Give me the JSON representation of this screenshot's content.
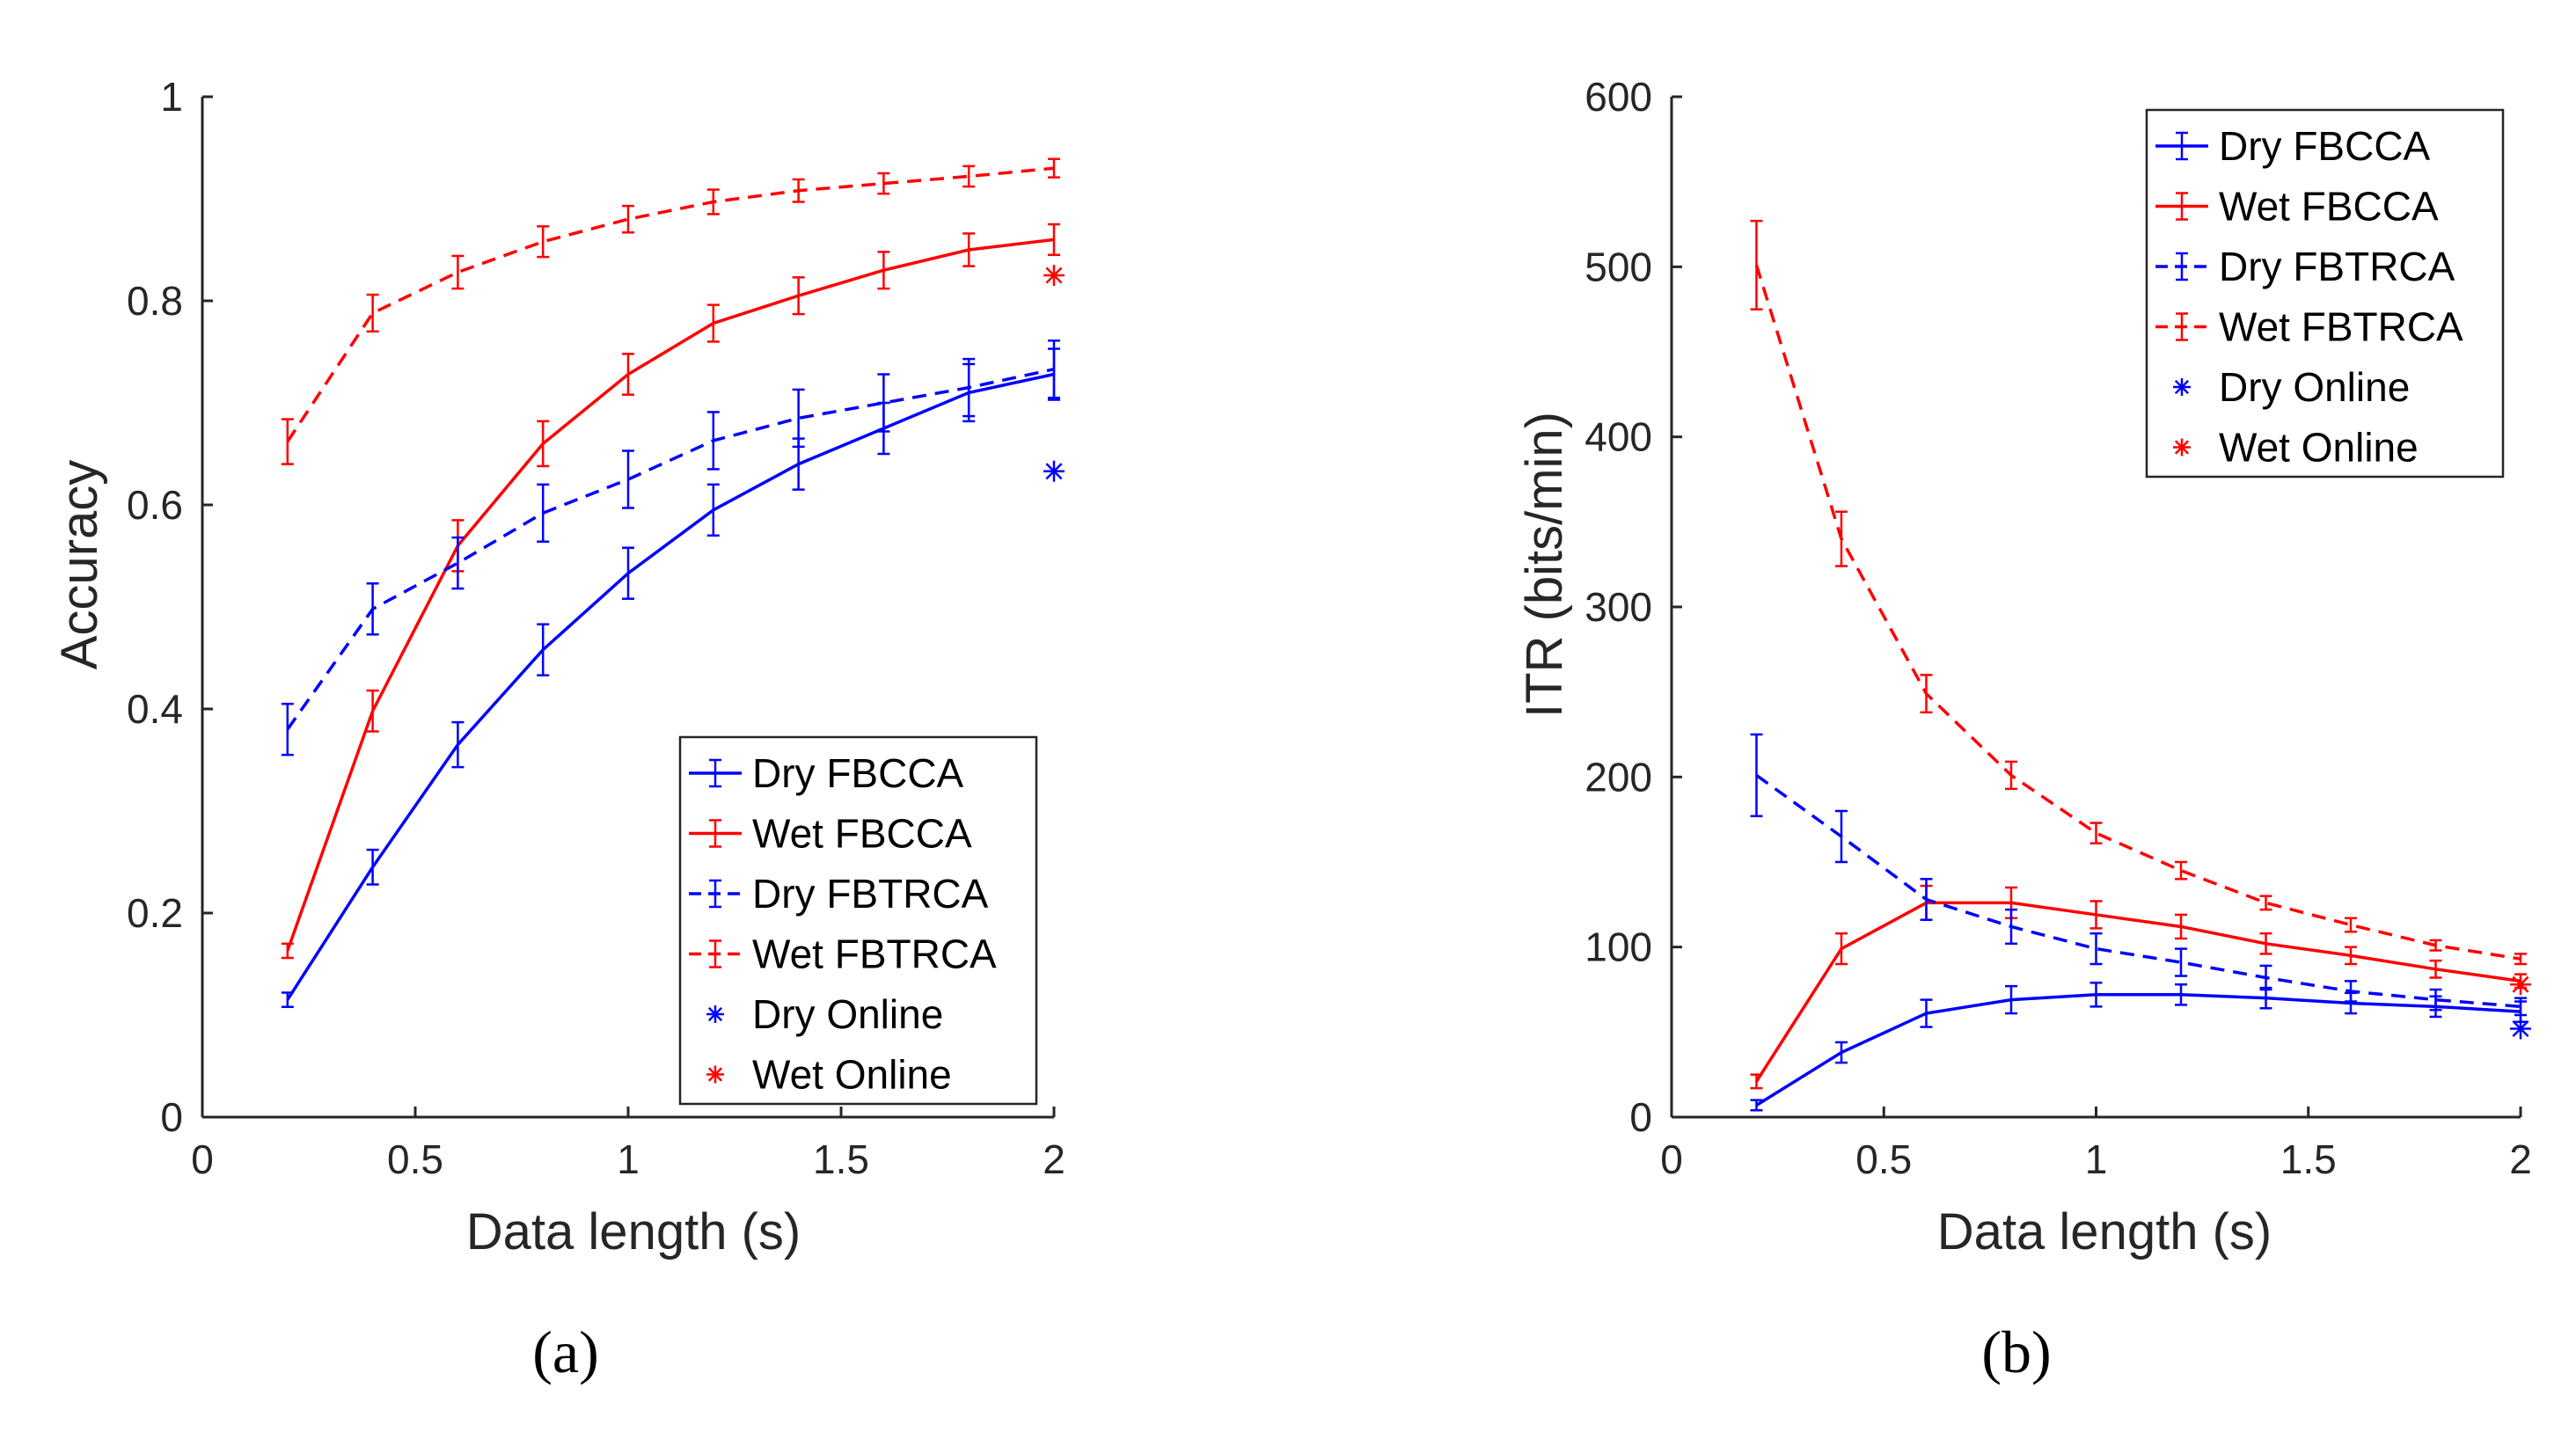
{
  "colors": {
    "dry": "#0000ff",
    "wet": "#ff0000",
    "axis": "#262626"
  },
  "chart_data": [
    {
      "type": "line",
      "panel_label": "(a)",
      "xlabel": "Data length (s)",
      "ylabel": "Accuracy",
      "xlim": [
        0,
        2
      ],
      "ylim": [
        0,
        1
      ],
      "xticks": [
        "0",
        "0.5",
        "1",
        "1.5",
        "2"
      ],
      "yticks": [
        "0",
        "0.2",
        "0.4",
        "0.6",
        "0.8",
        "1"
      ],
      "xtick_values": [
        0,
        0.5,
        1,
        1.5,
        2
      ],
      "ytick_values": [
        0,
        0.2,
        0.4,
        0.6,
        0.8,
        1
      ],
      "legend_position": "bottom-right",
      "grid": false,
      "x": [
        0.2,
        0.4,
        0.6,
        0.8,
        1.0,
        1.2,
        1.4,
        1.6,
        1.8,
        2.0
      ],
      "series": [
        {
          "name": "Dry FBCCA",
          "color": "#0000ff",
          "style": "solid",
          "values": [
            0.115,
            0.245,
            0.365,
            0.458,
            0.533,
            0.595,
            0.64,
            0.675,
            0.71,
            0.728
          ],
          "error": [
            0.007,
            0.017,
            0.022,
            0.025,
            0.025,
            0.025,
            0.025,
            0.025,
            0.028,
            0.025
          ]
        },
        {
          "name": "Wet FBCCA",
          "color": "#ff0000",
          "style": "solid",
          "values": [
            0.163,
            0.398,
            0.56,
            0.66,
            0.728,
            0.778,
            0.805,
            0.83,
            0.85,
            0.86
          ],
          "error": [
            0.007,
            0.02,
            0.025,
            0.022,
            0.02,
            0.018,
            0.018,
            0.018,
            0.016,
            0.015
          ]
        },
        {
          "name": "Dry FBTRCA",
          "color": "#0000ff",
          "style": "dashed",
          "values": [
            0.38,
            0.498,
            0.543,
            0.592,
            0.625,
            0.663,
            0.685,
            0.7,
            0.715,
            0.733
          ],
          "error": [
            0.025,
            0.025,
            0.025,
            0.028,
            0.028,
            0.028,
            0.028,
            0.028,
            0.028,
            0.028
          ]
        },
        {
          "name": "Wet FBTRCA",
          "color": "#ff0000",
          "style": "dashed",
          "values": [
            0.662,
            0.788,
            0.828,
            0.858,
            0.88,
            0.897,
            0.908,
            0.915,
            0.922,
            0.93
          ],
          "error": [
            0.022,
            0.018,
            0.016,
            0.015,
            0.013,
            0.012,
            0.011,
            0.01,
            0.01,
            0.009
          ]
        },
        {
          "name": "Dry Online",
          "color": "#0000ff",
          "style": "marker",
          "x": [
            2.0
          ],
          "values": [
            0.633
          ]
        },
        {
          "name": "Wet Online",
          "color": "#ff0000",
          "style": "marker",
          "x": [
            2.0
          ],
          "values": [
            0.825
          ]
        }
      ]
    },
    {
      "type": "line",
      "panel_label": "(b)",
      "xlabel": "Data length (s)",
      "ylabel": "ITR (bits/min)",
      "xlim": [
        0,
        2
      ],
      "ylim": [
        0,
        600
      ],
      "xticks": [
        "0",
        "0.5",
        "1",
        "1.5",
        "2"
      ],
      "yticks": [
        "0",
        "100",
        "200",
        "300",
        "400",
        "500",
        "600"
      ],
      "xtick_values": [
        0,
        0.5,
        1,
        1.5,
        2
      ],
      "ytick_values": [
        0,
        100,
        200,
        300,
        400,
        500,
        600
      ],
      "legend_position": "top-right",
      "grid": false,
      "x": [
        0.2,
        0.4,
        0.6,
        0.8,
        1.0,
        1.2,
        1.4,
        1.6,
        1.8,
        2.0
      ],
      "series": [
        {
          "name": "Dry FBCCA",
          "color": "#0000ff",
          "style": "solid",
          "values": [
            7,
            38,
            61,
            69,
            72,
            72,
            70,
            67,
            65,
            62
          ],
          "error": [
            3,
            6,
            8,
            8,
            7,
            6,
            6,
            6,
            6,
            6
          ]
        },
        {
          "name": "Wet FBCCA",
          "color": "#ff0000",
          "style": "solid",
          "values": [
            21,
            99,
            126,
            126,
            119,
            112,
            102,
            95,
            87,
            80
          ],
          "error": [
            4,
            9,
            10,
            9,
            8,
            7,
            6,
            5,
            5,
            4
          ]
        },
        {
          "name": "Dry FBTRCA",
          "color": "#0000ff",
          "style": "dashed",
          "values": [
            201,
            165,
            128,
            112,
            99,
            91,
            82,
            74,
            69,
            65
          ],
          "error": [
            24,
            15,
            12,
            10,
            9,
            8,
            7,
            6,
            6,
            5
          ]
        },
        {
          "name": "Wet FBTRCA",
          "color": "#ff0000",
          "style": "dashed",
          "values": [
            501,
            340,
            249,
            201,
            167,
            145,
            126,
            113,
            101,
            93
          ],
          "error": [
            26,
            16,
            11,
            8,
            6,
            5,
            4,
            4,
            3,
            3
          ]
        },
        {
          "name": "Dry Online",
          "color": "#0000ff",
          "style": "marker",
          "x": [
            2.0
          ],
          "values": [
            52
          ]
        },
        {
          "name": "Wet Online",
          "color": "#ff0000",
          "style": "marker",
          "x": [
            2.0
          ],
          "values": [
            78
          ]
        }
      ]
    }
  ]
}
